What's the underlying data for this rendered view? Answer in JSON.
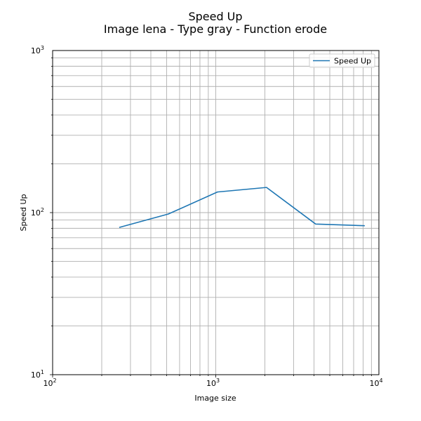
{
  "chart_data": {
    "type": "line",
    "title": "Speed Up",
    "subtitle": "Image lena - Type gray - Function erode",
    "xlabel": "Image size",
    "ylabel": "Speed Up",
    "xscale": "log",
    "yscale": "log",
    "xlim": [
      100,
      10000
    ],
    "ylim": [
      10,
      1000
    ],
    "grid": "both",
    "legend_position": "top-right",
    "x_ticks": [
      {
        "base": "10",
        "exp": "2",
        "value": 100
      },
      {
        "base": "10",
        "exp": "3",
        "value": 1000
      },
      {
        "base": "10",
        "exp": "4",
        "value": 10000
      }
    ],
    "y_ticks": [
      {
        "base": "10",
        "exp": "1",
        "value": 10
      },
      {
        "base": "10",
        "exp": "2",
        "value": 100
      },
      {
        "base": "10",
        "exp": "3",
        "value": 1000
      }
    ],
    "series": [
      {
        "name": "Speed Up",
        "color": "#1f77b4",
        "x": [
          256,
          512,
          1024,
          2048,
          4096,
          8192
        ],
        "y": [
          81,
          98,
          134,
          143,
          85,
          83
        ]
      }
    ]
  }
}
